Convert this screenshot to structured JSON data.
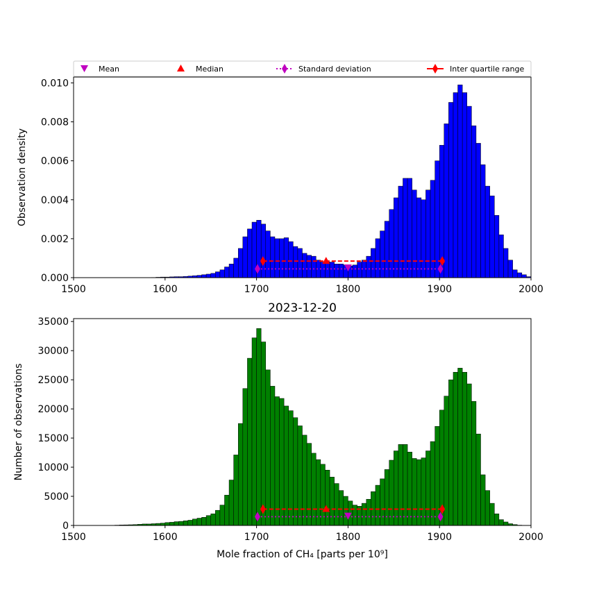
{
  "legend": {
    "entries": [
      {
        "label": "Mean",
        "marker": "triangle-down",
        "color": "#c000c0",
        "line": "none"
      },
      {
        "label": "Median",
        "marker": "triangle-up",
        "color": "#ff0000",
        "line": "none"
      },
      {
        "label": "Standard deviation",
        "marker": "diamond",
        "color": "#c000c0",
        "line": "dotted"
      },
      {
        "label": "Inter quartile range",
        "marker": "diamond",
        "color": "#ff0000",
        "line": "solid"
      }
    ]
  },
  "chart_data": [
    {
      "type": "bar",
      "title": "",
      "xlabel": "",
      "ylabel": "Observation density",
      "xlim": [
        1500,
        2000
      ],
      "ylim": [
        0,
        0.0103
      ],
      "bar_color": "#0000ff",
      "bin_width": 5,
      "xticks": [
        1500,
        1600,
        1700,
        1800,
        1900,
        2000
      ],
      "xtick_labels": [
        "1500",
        "1600",
        "1700",
        "1800",
        "1900",
        "2000"
      ],
      "yticks": [
        0,
        0.002,
        0.004,
        0.006,
        0.008,
        0.01
      ],
      "ytick_labels": [
        "0.000",
        "0.002",
        "0.004",
        "0.006",
        "0.008",
        "0.010"
      ],
      "bins": [
        1585,
        1590,
        1595,
        1600,
        1605,
        1610,
        1615,
        1620,
        1625,
        1630,
        1635,
        1640,
        1645,
        1650,
        1655,
        1660,
        1665,
        1670,
        1675,
        1680,
        1685,
        1690,
        1695,
        1700,
        1705,
        1710,
        1715,
        1720,
        1725,
        1730,
        1735,
        1740,
        1745,
        1750,
        1755,
        1760,
        1765,
        1770,
        1775,
        1780,
        1785,
        1790,
        1795,
        1800,
        1805,
        1810,
        1815,
        1820,
        1825,
        1830,
        1835,
        1840,
        1845,
        1850,
        1855,
        1860,
        1865,
        1870,
        1875,
        1880,
        1885,
        1890,
        1895,
        1900,
        1905,
        1910,
        1915,
        1920,
        1925,
        1930,
        1935,
        1940,
        1945,
        1950,
        1955,
        1960,
        1965,
        1970,
        1975,
        1980,
        1985,
        1990,
        1995
      ],
      "values": [
        1e-05,
        2e-05,
        3e-05,
        3e-05,
        4e-05,
        5e-05,
        5e-05,
        6e-05,
        8e-05,
        0.0001,
        0.00012,
        0.00015,
        0.00018,
        0.00022,
        0.0003,
        0.0004,
        0.00055,
        0.0007,
        0.001,
        0.0015,
        0.0021,
        0.0025,
        0.00285,
        0.00295,
        0.00275,
        0.0024,
        0.0021,
        0.002,
        0.002,
        0.00205,
        0.00185,
        0.0016,
        0.0015,
        0.00125,
        0.00115,
        0.0011,
        0.0009,
        0.0008,
        0.0008,
        0.0008,
        0.0007,
        0.0007,
        0.00065,
        0.0006,
        0.00065,
        0.0008,
        0.0009,
        0.0011,
        0.0015,
        0.002,
        0.0024,
        0.0029,
        0.0035,
        0.0041,
        0.0047,
        0.0051,
        0.0051,
        0.0045,
        0.0041,
        0.004,
        0.0045,
        0.005,
        0.006,
        0.0068,
        0.0079,
        0.009,
        0.0095,
        0.0099,
        0.0095,
        0.0088,
        0.0078,
        0.0069,
        0.0058,
        0.0047,
        0.0042,
        0.0032,
        0.0022,
        0.0015,
        0.0009,
        0.0004,
        0.00025,
        0.00015,
        5e-05
      ],
      "stats": {
        "mean": {
          "x": 1800,
          "y": 0.0005
        },
        "median": {
          "x": 1776,
          "y": 0.00085
        },
        "std": {
          "x": [
            1701,
            1901
          ],
          "y": 0.00045
        },
        "iqr": {
          "x": [
            1707,
            1903
          ],
          "y": 0.00085
        }
      }
    },
    {
      "type": "bar",
      "title": "2023-12-20",
      "xlabel": "Mole fraction of CH₄ [parts per 10⁹]",
      "ylabel": "Number of observations",
      "xlim": [
        1500,
        2000
      ],
      "ylim": [
        0,
        35500
      ],
      "bar_color": "#008000",
      "bin_width": 5,
      "xticks": [
        1500,
        1600,
        1700,
        1800,
        1900,
        2000
      ],
      "xtick_labels": [
        "1500",
        "1600",
        "1700",
        "1800",
        "1900",
        "2000"
      ],
      "yticks": [
        0,
        5000,
        10000,
        15000,
        20000,
        25000,
        30000,
        35000
      ],
      "ytick_labels": [
        "0",
        "5000",
        "10000",
        "15000",
        "20000",
        "25000",
        "30000",
        "35000"
      ],
      "bins": [
        1545,
        1550,
        1555,
        1560,
        1565,
        1570,
        1575,
        1580,
        1585,
        1590,
        1595,
        1600,
        1605,
        1610,
        1615,
        1620,
        1625,
        1630,
        1635,
        1640,
        1645,
        1650,
        1655,
        1660,
        1665,
        1670,
        1675,
        1680,
        1685,
        1690,
        1695,
        1700,
        1705,
        1710,
        1715,
        1720,
        1725,
        1730,
        1735,
        1740,
        1745,
        1750,
        1755,
        1760,
        1765,
        1770,
        1775,
        1780,
        1785,
        1790,
        1795,
        1800,
        1805,
        1810,
        1815,
        1820,
        1825,
        1830,
        1835,
        1840,
        1845,
        1850,
        1855,
        1860,
        1865,
        1870,
        1875,
        1880,
        1885,
        1890,
        1895,
        1900,
        1905,
        1910,
        1915,
        1920,
        1925,
        1930,
        1935,
        1940,
        1945,
        1950,
        1955,
        1960,
        1965,
        1970,
        1975,
        1980,
        1985,
        1990,
        1995
      ],
      "values": [
        50,
        80,
        100,
        120,
        150,
        200,
        250,
        250,
        300,
        350,
        400,
        500,
        550,
        650,
        700,
        800,
        900,
        1100,
        1250,
        1400,
        1700,
        2000,
        2600,
        3500,
        5200,
        7800,
        12100,
        17500,
        23500,
        28700,
        32200,
        33800,
        31500,
        26700,
        23900,
        22100,
        21800,
        20500,
        19700,
        18500,
        17100,
        15500,
        14100,
        12400,
        11300,
        10500,
        9500,
        8300,
        7200,
        6000,
        5000,
        4200,
        3500,
        3300,
        3800,
        4500,
        5800,
        6900,
        8000,
        9600,
        11200,
        12800,
        13900,
        13900,
        12600,
        11500,
        11300,
        11600,
        12800,
        14400,
        17000,
        19800,
        22200,
        25000,
        26300,
        27000,
        26300,
        24300,
        21300,
        15700,
        8700,
        6000,
        3800,
        2000,
        1000,
        600,
        300,
        150,
        50,
        20,
        10
      ],
      "stats": {
        "mean": {
          "x": 1800,
          "y": 1600
        },
        "median": {
          "x": 1776,
          "y": 2800
        },
        "std": {
          "x": [
            1701,
            1901
          ],
          "y": 1500
        },
        "iqr": {
          "x": [
            1707,
            1903
          ],
          "y": 2800
        }
      }
    }
  ]
}
